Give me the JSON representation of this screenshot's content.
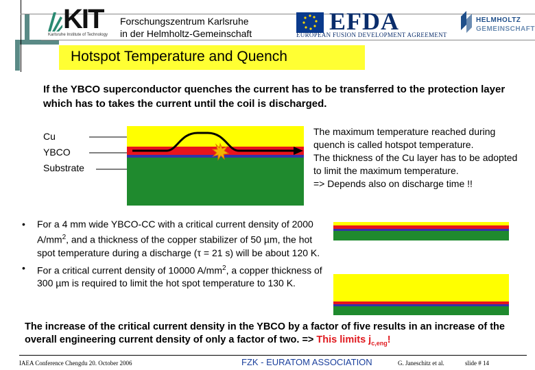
{
  "header": {
    "kit_logo": "KIT",
    "kit_subtitle": "Karlsruhe Institute of Technology",
    "institution_line1": "Forschungszentrum Karlsruhe",
    "institution_line2": "in der Helmholtz-Gemeinschaft",
    "efda_logo": "EFDA",
    "efda_subtitle": "EUROPEAN FUSION DEVELOPMENT AGREEMENT",
    "helmholtz_line1": "HELMHOLTZ",
    "helmholtz_line2": "GEMEINSCHAFT"
  },
  "slide": {
    "title": "Hotspot Temperature and Quench",
    "intro": "If the YBCO superconductor quenches the current has to be transferred to the protection layer which has to takes the current until the coil is discharged.",
    "layer_labels": [
      "Cu",
      "YBCO",
      "Substrate"
    ],
    "right_text": [
      "The maximum temperature reached during quench is called hotspot temperature.",
      "The thickness of the Cu layer has to be adopted to limit the maximum temperature.",
      "=> Depends also on discharge time !!"
    ],
    "bullet1": {
      "text_a": "For a 4 mm wide YBCO-CC with a critical current density of 2000 A/mm",
      "sup": "2",
      "text_b": ", and a thickness of the copper stabilizer of 50 ",
      "mu": "µ",
      "text_c": "m, the hot spot temperature during a discharge (",
      "tau": "τ",
      "text_d": " = 21 s) will be about 120 K."
    },
    "bullet2": {
      "text_a": "For a critical current density of 10000 A/mm",
      "sup": "2",
      "text_b": ", a copper thickness of 300 ",
      "mu": "µ",
      "text_c": "m is required to limit the hot spot temperature to 130 K."
    },
    "conclusion": {
      "text": "The increase of the critical current density in the YBCO by a factor of five results in an increase of the overall engineering current density of only a factor of two. => ",
      "highlight": "This limits j",
      "sub": "c,eng",
      "end": "!"
    }
  },
  "footer": {
    "conference": "IAEA Conference Chengdu 20. October 2006",
    "association": "FZK - EURATOM ASSOCIATION",
    "author": "G. Janeschitz et al.",
    "slide_number": "slide # 14"
  },
  "colors": {
    "copper_layer": "#ffff00",
    "ybco_layer": "#e8141c",
    "buffer_layer": "#3333aa",
    "substrate": "#1f8a2e",
    "title_bg": "#ffff33",
    "highlight": "#e0191e"
  }
}
